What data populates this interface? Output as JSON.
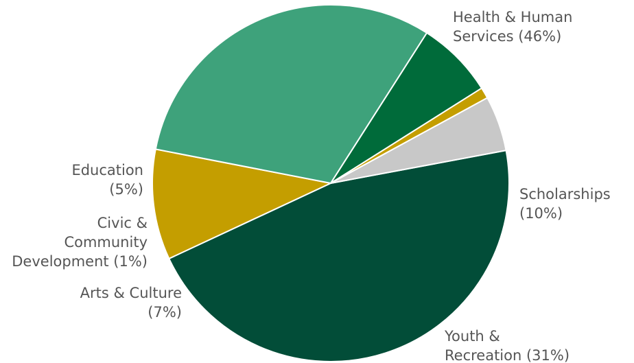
{
  "chart_data": {
    "type": "pie",
    "slices": [
      {
        "label": "Health & Human Services",
        "value": 46,
        "display": [
          "Health & Human",
          "Services (46%)"
        ],
        "color": "#024d38"
      },
      {
        "label": "Scholarships",
        "value": 10,
        "display": [
          "Scholarships",
          "(10%)"
        ],
        "color": "#c49e00"
      },
      {
        "label": "Youth & Recreation",
        "value": 31,
        "display": [
          "Youth &",
          "Recreation (31%)"
        ],
        "color": "#3ea27b"
      },
      {
        "label": "Arts & Culture",
        "value": 7,
        "display": [
          "Arts & Culture",
          "(7%)"
        ],
        "color": "#006b3a"
      },
      {
        "label": "Civic & Community Development",
        "value": 1,
        "display": [
          "Civic &",
          "Community",
          "Development (1%)"
        ],
        "color": "#c49e00"
      },
      {
        "label": "Education",
        "value": 5,
        "display": [
          "Education",
          "(5%)"
        ],
        "color": "#c8c8c8"
      }
    ]
  }
}
